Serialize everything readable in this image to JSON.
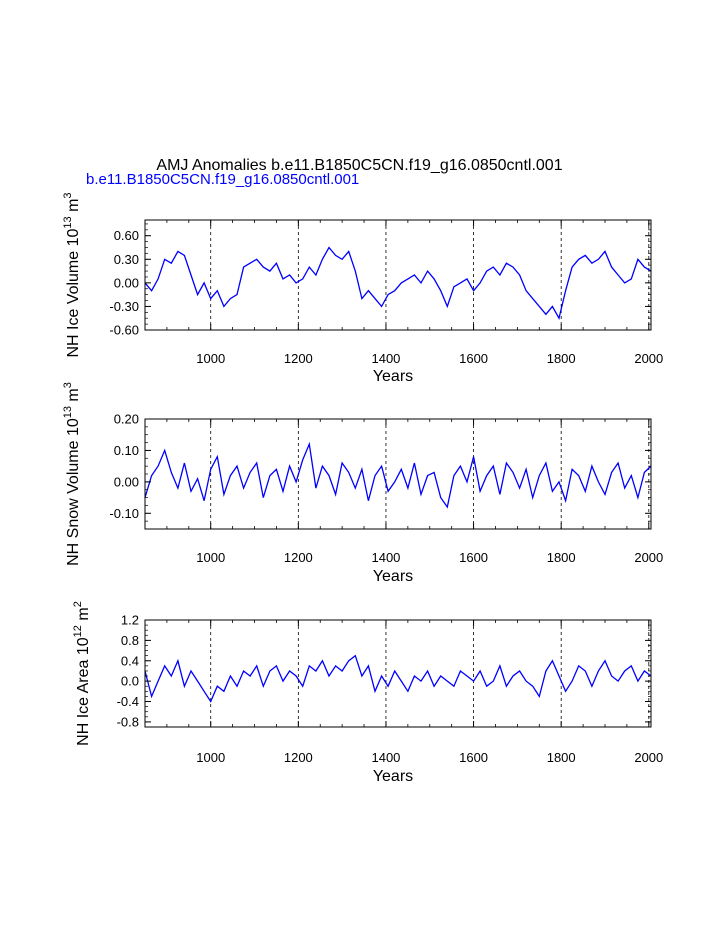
{
  "figure": {
    "title": "AMJ Anomalies b.e11.B1850C5CN.f19_g16.0850cntl.001",
    "subtitle": "b.e11.B1850C5CN.f19_g16.0850cntl.001",
    "line_color": "#0000ff"
  },
  "chart_data": [
    {
      "type": "line",
      "name": "ice-volume",
      "ylabel": "NH Ice Volume 10",
      "ylabel_exp1": "13",
      "ylabel_unit": " m",
      "ylabel_exp2": "3",
      "xlabel": "Years",
      "xlim": [
        850,
        2005
      ],
      "ylim": [
        -0.6,
        0.8
      ],
      "yticks": [
        -0.6,
        -0.3,
        0.0,
        0.3,
        0.6
      ],
      "ytick_labels": [
        "-0.60",
        "-0.30",
        "0.00",
        "0.30",
        "0.60"
      ],
      "xticks": [
        1000,
        1200,
        1400,
        1600,
        1800,
        2000
      ],
      "xtick_labels": [
        "1000",
        "1200",
        "1400",
        "1600",
        "1800",
        "2000"
      ],
      "dashed_x": [
        1000,
        1200,
        1400,
        1600,
        1800,
        2000
      ],
      "series": [
        {
          "name": "NH Ice Volume",
          "x": [
            850,
            865,
            880,
            895,
            910,
            925,
            940,
            955,
            970,
            985,
            1000,
            1015,
            1030,
            1045,
            1060,
            1075,
            1090,
            1105,
            1120,
            1135,
            1150,
            1165,
            1180,
            1195,
            1210,
            1225,
            1240,
            1255,
            1270,
            1285,
            1300,
            1315,
            1330,
            1345,
            1360,
            1375,
            1390,
            1405,
            1420,
            1435,
            1450,
            1465,
            1480,
            1495,
            1510,
            1525,
            1540,
            1555,
            1570,
            1585,
            1600,
            1615,
            1630,
            1645,
            1660,
            1675,
            1690,
            1705,
            1720,
            1735,
            1750,
            1765,
            1780,
            1795,
            1810,
            1825,
            1840,
            1855,
            1870,
            1885,
            1900,
            1915,
            1930,
            1945,
            1960,
            1975,
            1990,
            2005
          ],
          "y": [
            0.0,
            -0.1,
            0.05,
            0.3,
            0.25,
            0.4,
            0.35,
            0.1,
            -0.15,
            0.0,
            -0.2,
            -0.1,
            -0.3,
            -0.2,
            -0.15,
            0.2,
            0.25,
            0.3,
            0.2,
            0.15,
            0.25,
            0.05,
            0.1,
            0.0,
            0.05,
            0.2,
            0.1,
            0.3,
            0.45,
            0.35,
            0.3,
            0.4,
            0.15,
            -0.2,
            -0.1,
            -0.2,
            -0.3,
            -0.15,
            -0.1,
            0.0,
            0.05,
            0.1,
            0.0,
            0.15,
            0.05,
            -0.1,
            -0.3,
            -0.05,
            0.0,
            0.05,
            -0.1,
            0.0,
            0.15,
            0.2,
            0.1,
            0.25,
            0.2,
            0.1,
            -0.1,
            -0.2,
            -0.3,
            -0.4,
            -0.3,
            -0.45,
            -0.1,
            0.2,
            0.3,
            0.35,
            0.25,
            0.3,
            0.4,
            0.2,
            0.1,
            0.0,
            0.05,
            0.3,
            0.2,
            0.15
          ]
        }
      ]
    },
    {
      "type": "line",
      "name": "snow-volume",
      "ylabel": "NH Snow Volume 10",
      "ylabel_exp1": "13",
      "ylabel_unit": " m",
      "ylabel_exp2": "3",
      "xlabel": "Years",
      "xlim": [
        850,
        2005
      ],
      "ylim": [
        -0.15,
        0.2
      ],
      "yticks": [
        -0.1,
        0.0,
        0.1,
        0.2
      ],
      "ytick_labels": [
        "-0.10",
        "0.00",
        "0.10",
        "0.20"
      ],
      "xticks": [
        1000,
        1200,
        1400,
        1600,
        1800,
        2000
      ],
      "xtick_labels": [
        "1000",
        "1200",
        "1400",
        "1600",
        "1800",
        "2000"
      ],
      "dashed_x": [
        1000,
        1200,
        1400,
        1600,
        1800,
        2000
      ],
      "series": [
        {
          "name": "NH Snow Volume",
          "x": [
            850,
            865,
            880,
            895,
            910,
            925,
            940,
            955,
            970,
            985,
            1000,
            1015,
            1030,
            1045,
            1060,
            1075,
            1090,
            1105,
            1120,
            1135,
            1150,
            1165,
            1180,
            1195,
            1210,
            1225,
            1240,
            1255,
            1270,
            1285,
            1300,
            1315,
            1330,
            1345,
            1360,
            1375,
            1390,
            1405,
            1420,
            1435,
            1450,
            1465,
            1480,
            1495,
            1510,
            1525,
            1540,
            1555,
            1570,
            1585,
            1600,
            1615,
            1630,
            1645,
            1660,
            1675,
            1690,
            1705,
            1720,
            1735,
            1750,
            1765,
            1780,
            1795,
            1810,
            1825,
            1840,
            1855,
            1870,
            1885,
            1900,
            1915,
            1930,
            1945,
            1960,
            1975,
            1990,
            2005
          ],
          "y": [
            -0.05,
            0.02,
            0.05,
            0.1,
            0.03,
            -0.02,
            0.06,
            -0.03,
            0.01,
            -0.06,
            0.04,
            0.08,
            -0.04,
            0.02,
            0.05,
            -0.02,
            0.03,
            0.06,
            -0.05,
            0.02,
            0.04,
            -0.03,
            0.05,
            0.0,
            0.07,
            0.12,
            -0.02,
            0.05,
            0.02,
            -0.04,
            0.06,
            0.03,
            -0.02,
            0.04,
            -0.06,
            0.02,
            0.05,
            -0.03,
            0.0,
            0.04,
            -0.02,
            0.06,
            -0.04,
            0.02,
            0.03,
            -0.05,
            -0.08,
            0.02,
            0.05,
            0.0,
            0.08,
            -0.03,
            0.02,
            0.05,
            -0.04,
            0.06,
            0.03,
            -0.02,
            0.04,
            -0.05,
            0.02,
            0.06,
            -0.03,
            0.0,
            -0.06,
            0.04,
            0.02,
            -0.03,
            0.05,
            0.0,
            -0.04,
            0.03,
            0.06,
            -0.02,
            0.02,
            -0.05,
            0.03,
            0.05
          ]
        }
      ]
    },
    {
      "type": "line",
      "name": "ice-area",
      "ylabel": "NH Ice Area 10",
      "ylabel_exp1": "12",
      "ylabel_unit": " m",
      "ylabel_exp2": "2",
      "xlabel": "Years",
      "xlim": [
        850,
        2005
      ],
      "ylim": [
        -0.9,
        1.2
      ],
      "yticks": [
        -0.8,
        -0.4,
        0.0,
        0.4,
        0.8,
        1.2
      ],
      "ytick_labels": [
        "-0.8",
        "-0.4",
        "0.0",
        "0.4",
        "0.8",
        "1.2"
      ],
      "xticks": [
        1000,
        1200,
        1400,
        1600,
        1800,
        2000
      ],
      "xtick_labels": [
        "1000",
        "1200",
        "1400",
        "1600",
        "1800",
        "2000"
      ],
      "dashed_x": [
        1000,
        1200,
        1400,
        1600,
        1800,
        2000
      ],
      "series": [
        {
          "name": "NH Ice Area",
          "x": [
            850,
            865,
            880,
            895,
            910,
            925,
            940,
            955,
            970,
            985,
            1000,
            1015,
            1030,
            1045,
            1060,
            1075,
            1090,
            1105,
            1120,
            1135,
            1150,
            1165,
            1180,
            1195,
            1210,
            1225,
            1240,
            1255,
            1270,
            1285,
            1300,
            1315,
            1330,
            1345,
            1360,
            1375,
            1390,
            1405,
            1420,
            1435,
            1450,
            1465,
            1480,
            1495,
            1510,
            1525,
            1540,
            1555,
            1570,
            1585,
            1600,
            1615,
            1630,
            1645,
            1660,
            1675,
            1690,
            1705,
            1720,
            1735,
            1750,
            1765,
            1780,
            1795,
            1810,
            1825,
            1840,
            1855,
            1870,
            1885,
            1900,
            1915,
            1930,
            1945,
            1960,
            1975,
            1990,
            2005
          ],
          "y": [
            0.2,
            -0.3,
            0.0,
            0.3,
            0.1,
            0.4,
            -0.1,
            0.2,
            0.0,
            -0.2,
            -0.4,
            -0.1,
            -0.2,
            0.1,
            -0.1,
            0.2,
            0.1,
            0.3,
            -0.1,
            0.2,
            0.3,
            0.0,
            0.2,
            0.1,
            -0.1,
            0.3,
            0.2,
            0.4,
            0.1,
            0.3,
            0.2,
            0.4,
            0.5,
            0.1,
            0.3,
            -0.2,
            0.1,
            -0.1,
            0.2,
            0.0,
            -0.2,
            0.1,
            0.0,
            0.2,
            -0.1,
            0.1,
            0.0,
            -0.1,
            0.2,
            0.1,
            0.0,
            0.2,
            -0.1,
            0.0,
            0.3,
            -0.1,
            0.1,
            0.2,
            0.0,
            -0.1,
            -0.3,
            0.2,
            0.4,
            0.1,
            -0.2,
            0.0,
            0.3,
            0.2,
            -0.1,
            0.2,
            0.4,
            0.1,
            0.0,
            0.2,
            0.3,
            0.0,
            0.2,
            0.1
          ]
        }
      ]
    }
  ]
}
